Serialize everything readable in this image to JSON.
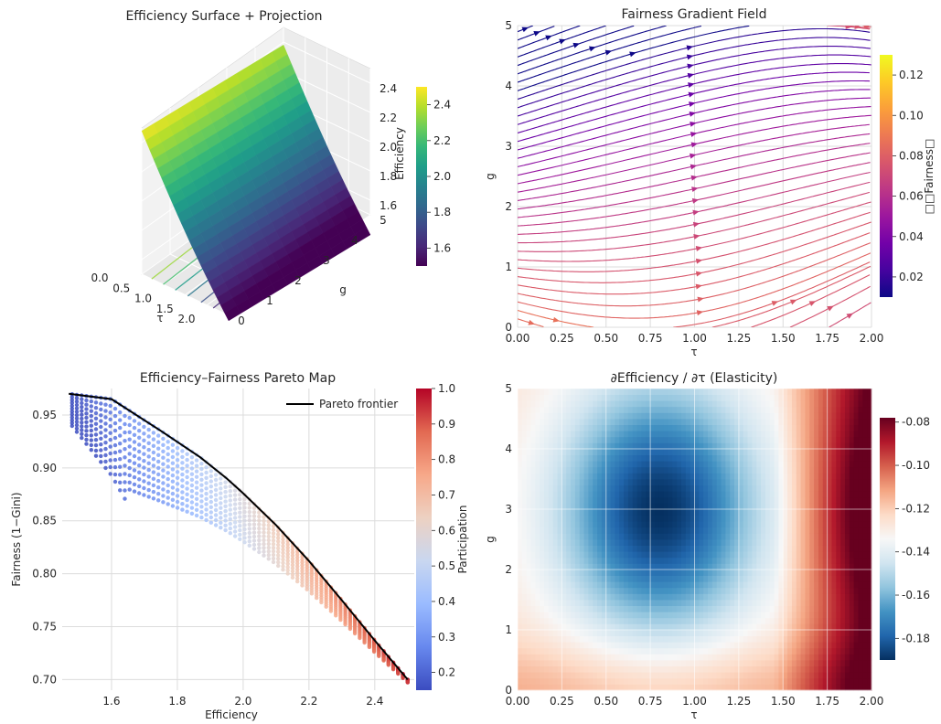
{
  "chart_data": [
    {
      "type": "surface",
      "title": "Efficiency Surface + Projection",
      "xlabel": "τ",
      "ylabel": "g",
      "zlabel": "Efficiency",
      "xticks": [
        "0.0",
        "0.5",
        "1.0",
        "1.5",
        "2.0"
      ],
      "yticks": [
        "0",
        "1",
        "2",
        "3",
        "4",
        "5"
      ],
      "zticks": [
        "1.6",
        "1.8",
        "2.0",
        "2.2",
        "2.4"
      ],
      "xlim": [
        0,
        2
      ],
      "ylim": [
        0,
        5
      ],
      "zlim": [
        1.5,
        2.5
      ],
      "colorbar": {
        "label": "Efficiency",
        "ticks": [
          "1.6",
          "1.8",
          "2.0",
          "2.2",
          "2.4"
        ],
        "colormap": "viridis"
      }
    },
    {
      "type": "streamplot",
      "title": "Fairness Gradient Field",
      "xlabel": "τ",
      "ylabel": "g",
      "xticks": [
        "0.00",
        "0.25",
        "0.50",
        "0.75",
        "1.00",
        "1.25",
        "1.50",
        "1.75",
        "2.00"
      ],
      "yticks": [
        "0",
        "1",
        "2",
        "3",
        "4",
        "5"
      ],
      "xlim": [
        0,
        2
      ],
      "ylim": [
        0,
        5
      ],
      "colorbar": {
        "label": "□□Fairness□",
        "ticks": [
          "0.02",
          "0.04",
          "0.06",
          "0.08",
          "0.10",
          "0.12"
        ],
        "colormap": "plasma"
      }
    },
    {
      "type": "scatter",
      "title": "Efficiency–Fairness Pareto Map",
      "xlabel": "Efficiency",
      "ylabel": "Fairness (1−Gini)",
      "xticks": [
        "1.6",
        "1.8",
        "2.0",
        "2.2",
        "2.4"
      ],
      "yticks": [
        "0.70",
        "0.75",
        "0.80",
        "0.85",
        "0.90",
        "0.95"
      ],
      "xlim": [
        1.45,
        2.52
      ],
      "ylim": [
        0.69,
        0.975
      ],
      "legend": {
        "entries": [
          "Pareto frontier"
        ],
        "placement": "upper-right"
      },
      "series": [
        {
          "name": "Pareto frontier",
          "type": "line",
          "color": "#000000",
          "x": [
            1.47,
            1.6,
            1.75,
            1.87,
            1.95,
            2.0,
            2.1,
            2.2,
            2.3,
            2.4,
            2.5
          ],
          "y": [
            0.97,
            0.965,
            0.935,
            0.91,
            0.89,
            0.876,
            0.846,
            0.812,
            0.775,
            0.737,
            0.7
          ]
        }
      ],
      "colorbar": {
        "label": "Participation",
        "ticks": [
          "0.2",
          "0.3",
          "0.4",
          "0.5",
          "0.6",
          "0.7",
          "0.8",
          "0.9",
          "1.0"
        ],
        "colormap": "coolwarm"
      }
    },
    {
      "type": "heatmap",
      "title": "∂Efficiency / ∂τ (Elasticity)",
      "xlabel": "τ",
      "ylabel": "g",
      "xticks": [
        "0.00",
        "0.25",
        "0.50",
        "0.75",
        "1.00",
        "1.25",
        "1.50",
        "1.75",
        "2.00"
      ],
      "yticks": [
        "0",
        "1",
        "2",
        "3",
        "4",
        "5"
      ],
      "xlim": [
        0,
        2
      ],
      "ylim": [
        0,
        5
      ],
      "zrange": [
        -0.19,
        -0.078
      ],
      "colorbar": {
        "label": "",
        "ticks": [
          "-0.18",
          "-0.16",
          "-0.14",
          "-0.12",
          "-0.10",
          "-0.08"
        ],
        "colormap": "RdBu_r"
      }
    }
  ]
}
